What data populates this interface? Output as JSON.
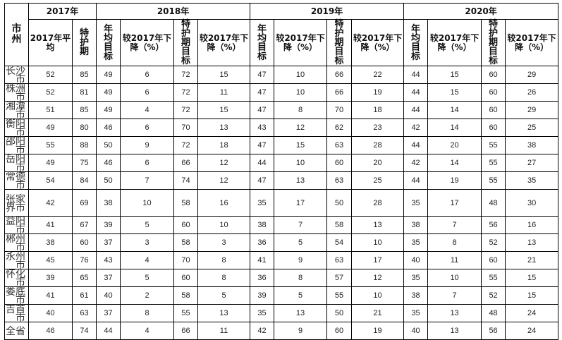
{
  "header": {
    "city": "市州",
    "years": [
      "2017年",
      "2018年",
      "2019年",
      "2020年"
    ],
    "y2017_cols": [
      "2017年平均",
      "特护期"
    ],
    "target_cols": [
      "年均目标",
      "较2017年下降（%）",
      "特护期目标",
      "较2017年下降（%）"
    ]
  },
  "rows": [
    {
      "city": "长沙市",
      "v": [
        52,
        85,
        49,
        6,
        72,
        15,
        47,
        10,
        66,
        22,
        44,
        15,
        60,
        29
      ]
    },
    {
      "city": "株洲市",
      "v": [
        52,
        81,
        49,
        6,
        72,
        11,
        47,
        10,
        66,
        19,
        44,
        15,
        60,
        26
      ]
    },
    {
      "city": "湘潭市",
      "v": [
        51,
        85,
        49,
        4,
        72,
        15,
        47,
        8,
        70,
        18,
        44,
        14,
        60,
        29
      ]
    },
    {
      "city": "衡阳市",
      "v": [
        49,
        80,
        46,
        6,
        70,
        13,
        43,
        12,
        62,
        23,
        42,
        14,
        60,
        25
      ]
    },
    {
      "city": "邵阳市",
      "v": [
        55,
        88,
        50,
        9,
        72,
        18,
        47,
        15,
        63,
        28,
        44,
        20,
        55,
        38
      ]
    },
    {
      "city": "岳阳市",
      "v": [
        49,
        75,
        46,
        6,
        66,
        12,
        44,
        10,
        60,
        20,
        42,
        14,
        55,
        27
      ]
    },
    {
      "city": "常德市",
      "v": [
        54,
        84,
        50,
        7,
        74,
        12,
        47,
        13,
        63,
        25,
        44,
        19,
        55,
        35
      ]
    },
    {
      "city": "张家界市",
      "v": [
        42,
        69,
        38,
        10,
        58,
        16,
        35,
        17,
        50,
        28,
        35,
        17,
        48,
        30
      ]
    },
    {
      "city": "益阳市",
      "v": [
        41,
        67,
        39,
        5,
        60,
        10,
        38,
        7,
        58,
        13,
        38,
        7,
        56,
        16
      ]
    },
    {
      "city": "郴州市",
      "v": [
        38,
        60,
        37,
        3,
        58,
        3,
        36,
        5,
        54,
        10,
        35,
        8,
        52,
        13
      ]
    },
    {
      "city": "永州市",
      "v": [
        45,
        76,
        43,
        4,
        70,
        8,
        41,
        9,
        63,
        17,
        40,
        11,
        60,
        21
      ]
    },
    {
      "city": "怀化市",
      "v": [
        39,
        65,
        37,
        5,
        60,
        8,
        36,
        8,
        57,
        12,
        35,
        10,
        55,
        15
      ]
    },
    {
      "city": "娄底市",
      "v": [
        41,
        61,
        40,
        2,
        58,
        5,
        39,
        5,
        55,
        10,
        38,
        7,
        52,
        15
      ]
    },
    {
      "city": "吉首市",
      "v": [
        40,
        63,
        37,
        8,
        55,
        13,
        35,
        13,
        50,
        21,
        35,
        13,
        48,
        24
      ]
    },
    {
      "city": "全省",
      "v": [
        46,
        74,
        44,
        4,
        66,
        11,
        42,
        9,
        60,
        19,
        40,
        13,
        56,
        24
      ]
    }
  ]
}
